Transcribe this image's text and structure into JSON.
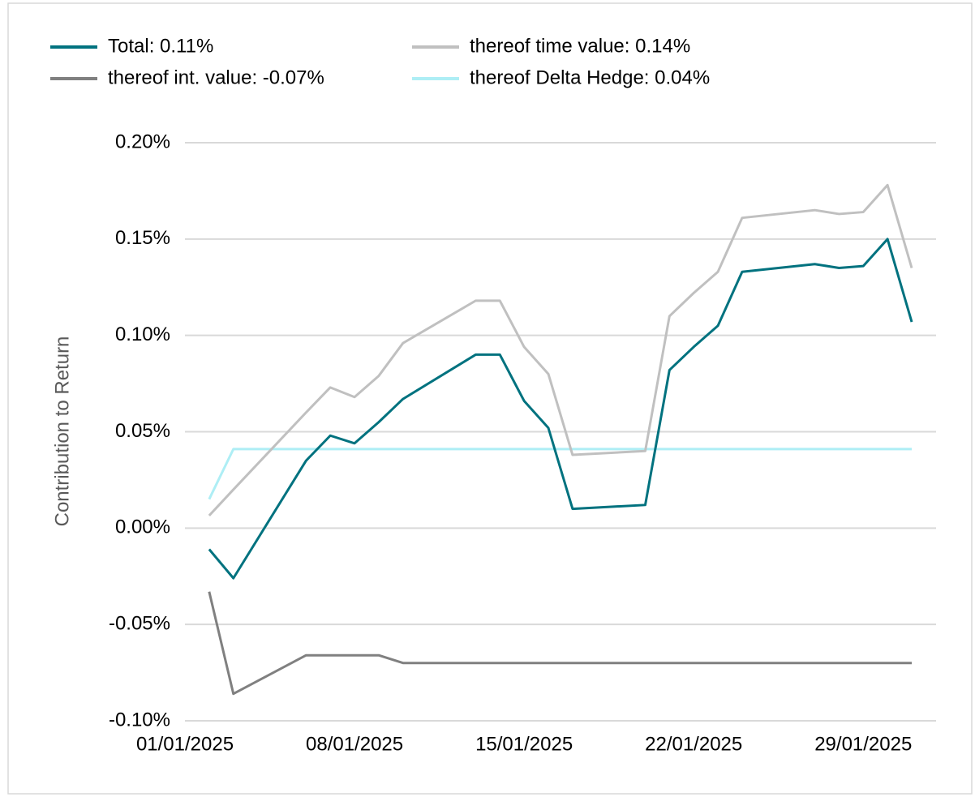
{
  "chart_data": {
    "type": "line",
    "y_label": "Contribution to Return",
    "x": [
      "02/01/2025",
      "03/01/2025",
      "06/01/2025",
      "07/01/2025",
      "08/01/2025",
      "09/01/2025",
      "10/01/2025",
      "13/01/2025",
      "14/01/2025",
      "15/01/2025",
      "16/01/2025",
      "17/01/2025",
      "20/01/2025",
      "21/01/2025",
      "22/01/2025",
      "23/01/2025",
      "24/01/2025",
      "27/01/2025",
      "28/01/2025",
      "29/01/2025",
      "30/01/2025",
      "31/01/2025"
    ],
    "series": [
      {
        "name": "Total: 0.11%",
        "color": "#00727f",
        "values": [
          -0.011,
          -0.026,
          0.035,
          0.048,
          0.044,
          0.055,
          0.067,
          0.09,
          0.09,
          0.066,
          0.052,
          0.01,
          0.012,
          0.082,
          0.094,
          0.105,
          0.133,
          0.137,
          0.135,
          0.136,
          0.15,
          0.107
        ]
      },
      {
        "name": "thereof time value: 0.14%",
        "color": "#c0c0c0",
        "values": [
          0.0065,
          0.02,
          0.06,
          0.073,
          0.068,
          0.079,
          0.096,
          0.118,
          0.118,
          0.094,
          0.08,
          0.038,
          0.04,
          0.11,
          0.122,
          0.133,
          0.161,
          0.165,
          0.163,
          0.164,
          0.178,
          0.135
        ]
      },
      {
        "name": "thereof int. value: -0.07%",
        "color": "#808080",
        "values": [
          -0.033,
          -0.086,
          -0.066,
          -0.066,
          -0.066,
          -0.066,
          -0.07,
          -0.07,
          -0.07,
          -0.07,
          -0.07,
          -0.07,
          -0.07,
          -0.07,
          -0.07,
          -0.07,
          -0.07,
          -0.07,
          -0.07,
          -0.07,
          -0.07,
          -0.07
        ]
      },
      {
        "name": "thereof Delta Hedge: 0.04%",
        "color": "#aeeef5",
        "values": [
          0.015,
          0.041,
          0.041,
          0.041,
          0.041,
          0.041,
          0.041,
          0.041,
          0.041,
          0.041,
          0.041,
          0.041,
          0.041,
          0.041,
          0.041,
          0.041,
          0.041,
          0.041,
          0.041,
          0.041,
          0.041,
          0.041
        ]
      }
    ],
    "xlim": [
      "01/01/2025",
      "31/01/2025"
    ],
    "xticks": [
      "01/01/2025",
      "08/01/2025",
      "15/01/2025",
      "22/01/2025",
      "29/01/2025"
    ],
    "ylim": [
      -0.1,
      0.2
    ],
    "yticks": [
      {
        "value": -0.1,
        "label": "-0.10%"
      },
      {
        "value": -0.05,
        "label": "-0.05%"
      },
      {
        "value": 0,
        "label": "0.00%"
      },
      {
        "value": 0.05,
        "label": "0.05%"
      },
      {
        "value": 0.1,
        "label": "0.10%"
      },
      {
        "value": 0.15,
        "label": "0.15%"
      },
      {
        "value": 0.2,
        "label": "0.20%"
      }
    ],
    "grid": true,
    "legend": "top"
  }
}
